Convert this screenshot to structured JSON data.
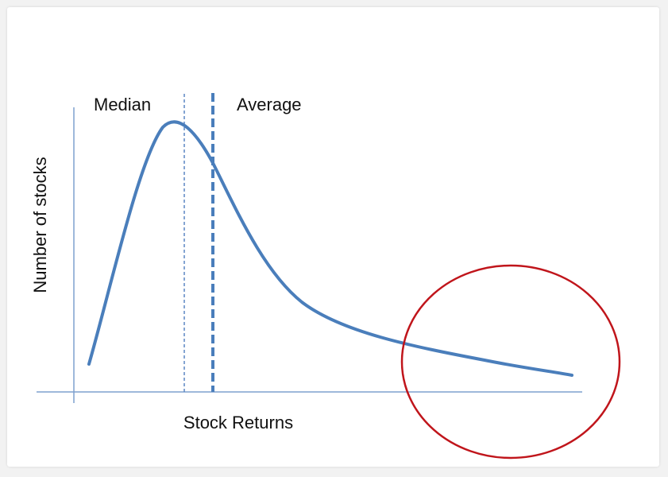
{
  "diagram": {
    "median_label": "Median",
    "average_label": "Average",
    "y_axis_label": "Number of stocks",
    "x_axis_label": "Stock Returns"
  },
  "colors": {
    "curve": "#4a7ebb",
    "axis": "#7fa0cf",
    "median_line": "#5b86c4",
    "average_line": "#4a7ebb",
    "circle": "#c0151b",
    "background": "#ffffff"
  }
}
